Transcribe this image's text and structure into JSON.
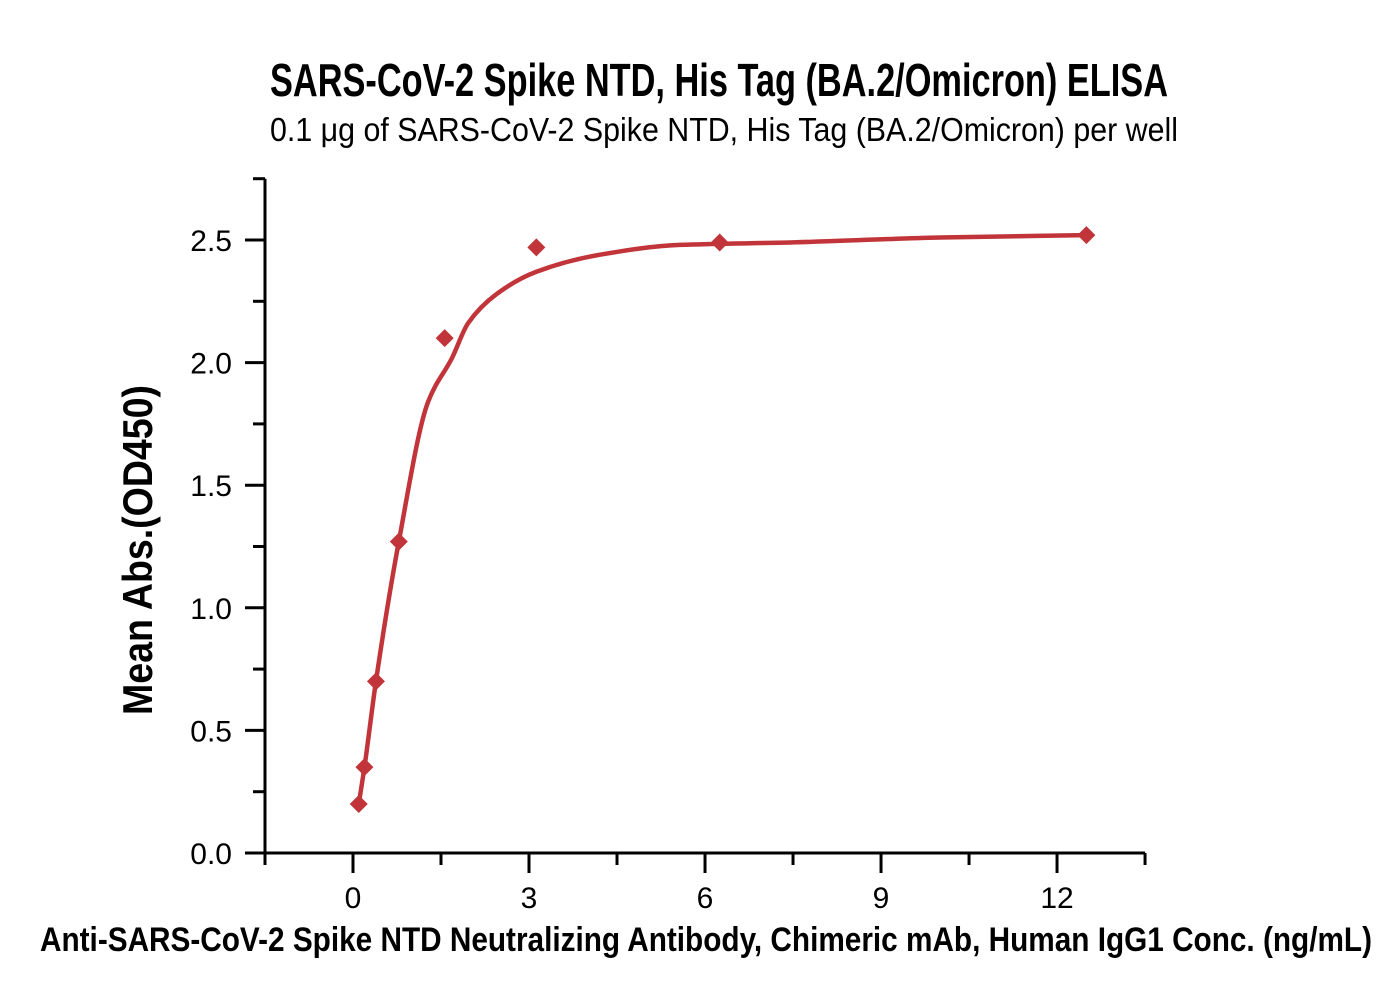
{
  "figure": {
    "background": "#ffffff"
  },
  "chart_data": {
    "type": "scatter",
    "title": "SARS-CoV-2 Spike NTD, His Tag (BA.2/Omicron) ELISA",
    "subtitle": "0.1 μg of SARS-CoV-2 Spike NTD, His Tag (BA.2/Omicron) per well",
    "xlabel": "Anti-SARS-CoV-2 Spike NTD Neutralizing Antibody, Chimeric mAb, Human IgG1 Conc. (ng/mL)",
    "ylabel": "Mean Abs.(OD450)",
    "x": [
      0.098,
      0.195,
      0.391,
      0.781,
      1.563,
      3.125,
      6.25,
      12.5
    ],
    "y": [
      0.2,
      0.35,
      0.7,
      1.27,
      2.1,
      2.47,
      2.49,
      2.52
    ],
    "marker": "diamond",
    "fit_curve": {
      "x": [
        0.098,
        0.195,
        0.391,
        0.781,
        1.28,
        1.69,
        1.96,
        2.45,
        3.12,
        4.21,
        5.57,
        7.45,
        10.0,
        12.5
      ],
      "y": [
        0.2,
        0.35,
        0.7,
        1.27,
        1.84,
        2.02,
        2.16,
        2.28,
        2.37,
        2.44,
        2.48,
        2.49,
        2.51,
        2.52
      ]
    },
    "xlim": [
      -1.5,
      13.5
    ],
    "ylim": [
      0,
      2.75
    ],
    "x_major_ticks": [
      0,
      3,
      6,
      9,
      12
    ],
    "x_major_tick_labels": [
      "0",
      "3",
      "6",
      "9",
      "12"
    ],
    "x_minor_ticks": [
      -1.5,
      1.5,
      4.5,
      7.5,
      10.5,
      13.5
    ],
    "y_major_ticks": [
      0,
      0.5,
      1.0,
      1.5,
      2.0,
      2.5
    ],
    "y_major_tick_labels": [
      "0.0",
      "0.5",
      "1.0",
      "1.5",
      "2.0",
      "2.5"
    ],
    "y_minor_ticks": [
      0.25,
      0.75,
      1.25,
      1.75,
      2.25,
      2.75
    ],
    "grid": false,
    "legend": false,
    "colors": {
      "line": "#c1353a",
      "marker": "#c1353a",
      "axis": "#000000",
      "text": "#000000"
    }
  }
}
